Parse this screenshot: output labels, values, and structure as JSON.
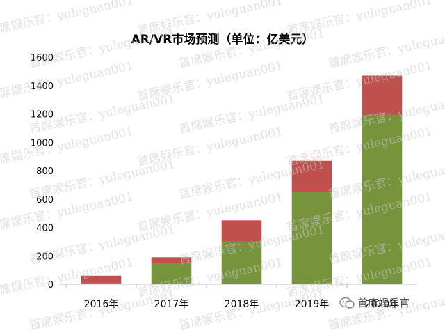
{
  "watermark": {
    "repeat_text_cn": "首席娱乐官：yuleguan001",
    "logo_text": "首席娱乐官"
  },
  "colors": {
    "base": "#77933c",
    "top": "#c0504d",
    "axis": "#bfbfbf",
    "grid": "#d9d9d9",
    "text": "#000000"
  },
  "chart_data": {
    "type": "bar",
    "stacked": true,
    "title": "AR/VR市场预测（单位：亿美元）",
    "categories": [
      "2016年",
      "2017年",
      "2018年",
      "2019年",
      "2020年"
    ],
    "series": [
      {
        "values": [
          10,
          150,
          300,
          650,
          1195
        ],
        "color": "#77933c"
      },
      {
        "values": [
          50,
          40,
          150,
          220,
          275
        ],
        "color": "#c0504d"
      }
    ],
    "ylim": [
      0,
      1600
    ],
    "yticks": [
      0,
      200,
      400,
      600,
      800,
      1000,
      1200,
      1400,
      1600
    ],
    "grid": false,
    "legend": "none"
  }
}
